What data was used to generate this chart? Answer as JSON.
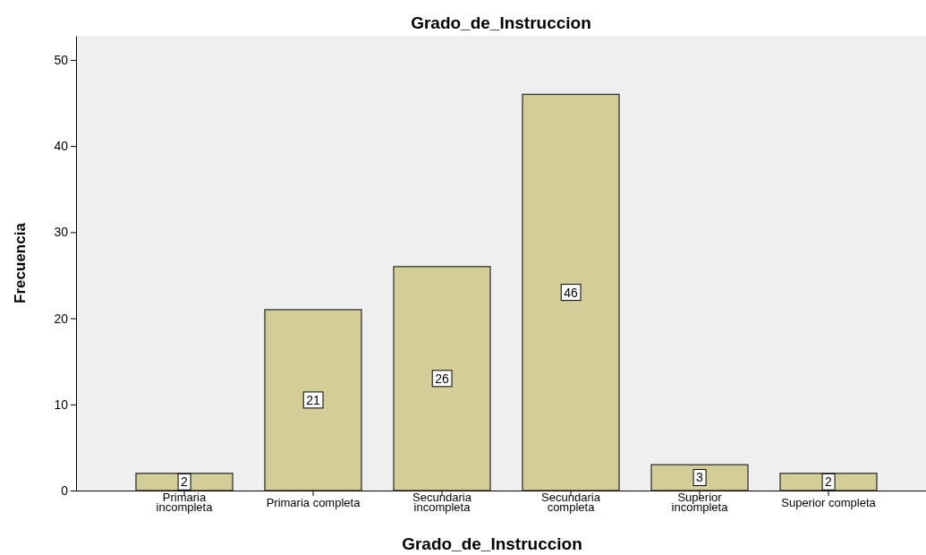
{
  "chart_data": {
    "type": "bar",
    "title": "Grado_de_Instruccion",
    "xlabel": "Grado_de_Instruccion",
    "ylabel": "Frecuencia",
    "categories": [
      "Primaria incompleta",
      "Primaria completa",
      "Secundaria incompleta",
      "Secundaria completa",
      "Superior incompleta",
      "Superior completa"
    ],
    "values": [
      2,
      21,
      26,
      46,
      3,
      2
    ],
    "color": "#d3ce97",
    "ylim": [
      0,
      52.8
    ],
    "yticks": [
      0,
      10,
      20,
      30,
      40,
      50
    ],
    "grid": false,
    "data_labels": true
  }
}
